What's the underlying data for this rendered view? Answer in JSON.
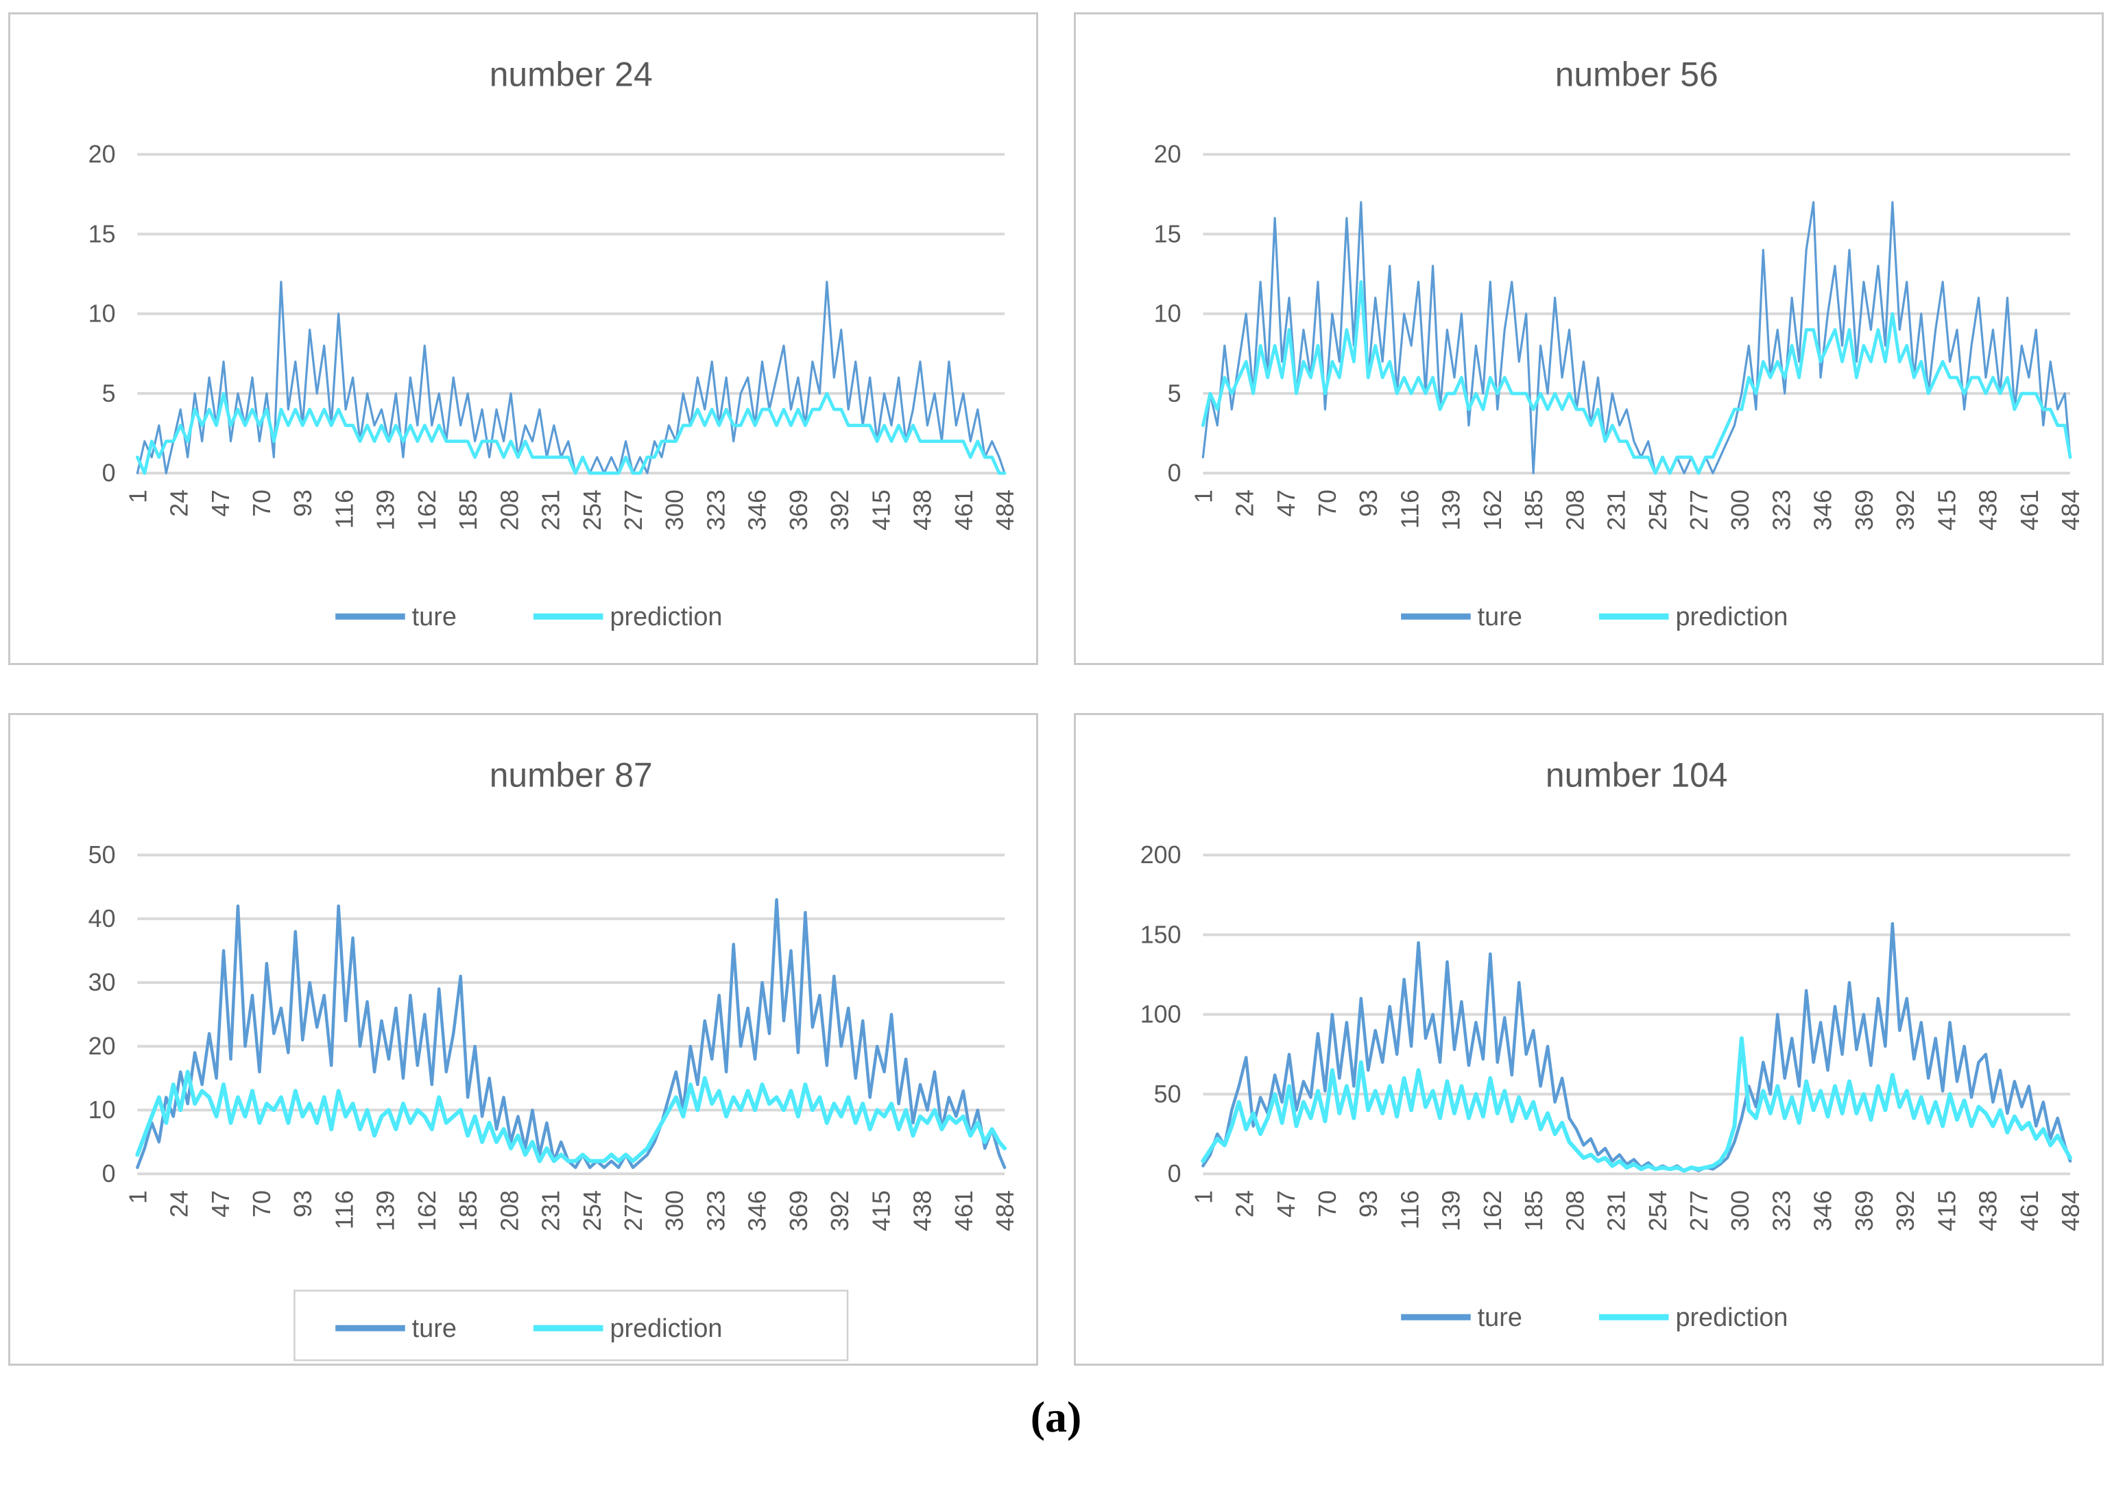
{
  "caption": {
    "label": "(a)"
  },
  "colors": {
    "ture": "#5B9BD5",
    "prediction": "#4FE9FC",
    "grid": "#D9D9D9",
    "axis_text": "#595959",
    "panel_border": "#C9C9C9",
    "legend_box_border": "#D0D0D0"
  },
  "chart_data": {
    "type": "line",
    "x_start": 1,
    "x_step": 4,
    "x_end": 484,
    "x_tick_labels": [
      "1",
      "24",
      "47",
      "70",
      "93",
      "116",
      "139",
      "162",
      "185",
      "208",
      "231",
      "254",
      "277",
      "300",
      "323",
      "346",
      "369",
      "392",
      "415",
      "438",
      "461",
      "484"
    ],
    "legend_labels": [
      "ture",
      "prediction"
    ],
    "legend_position": "bottom",
    "grid": true,
    "charts": [
      {
        "title": "number 24",
        "y_ticks": [
          0,
          5,
          10,
          15,
          20
        ],
        "y_max": 20,
        "legend_box": false,
        "series": [
          {
            "name": "ture",
            "values": [
              0,
              2,
              1,
              3,
              0,
              2,
              4,
              1,
              5,
              2,
              6,
              3,
              7,
              2,
              5,
              3,
              6,
              2,
              5,
              1,
              12,
              4,
              7,
              3,
              9,
              5,
              8,
              3,
              10,
              4,
              6,
              2,
              5,
              3,
              4,
              2,
              5,
              1,
              6,
              3,
              8,
              3,
              5,
              2,
              6,
              3,
              5,
              2,
              4,
              1,
              4,
              2,
              5,
              1,
              3,
              2,
              4,
              1,
              3,
              1,
              2,
              0,
              1,
              0,
              1,
              0,
              1,
              0,
              2,
              0,
              1,
              0,
              2,
              1,
              3,
              2,
              5,
              3,
              6,
              4,
              7,
              3,
              6,
              2,
              5,
              6,
              3,
              7,
              4,
              6,
              8,
              4,
              6,
              3,
              7,
              5,
              12,
              6,
              9,
              4,
              7,
              3,
              6,
              2,
              5,
              3,
              6,
              2,
              4,
              7,
              3,
              5,
              2,
              7,
              3,
              5,
              2,
              4,
              1,
              2,
              1,
              0
            ]
          },
          {
            "name": "prediction",
            "values": [
              1,
              0,
              2,
              1,
              2,
              2,
              3,
              2,
              4,
              3,
              4,
              3,
              5,
              3,
              4,
              3,
              4,
              3,
              4,
              2,
              4,
              3,
              4,
              3,
              4,
              3,
              4,
              3,
              4,
              3,
              3,
              2,
              3,
              2,
              3,
              2,
              3,
              2,
              3,
              2,
              3,
              2,
              3,
              2,
              2,
              2,
              2,
              1,
              2,
              2,
              2,
              1,
              2,
              1,
              2,
              1,
              1,
              1,
              1,
              1,
              1,
              0,
              1,
              0,
              0,
              0,
              0,
              0,
              1,
              0,
              0,
              1,
              1,
              2,
              2,
              2,
              3,
              3,
              4,
              3,
              4,
              3,
              4,
              3,
              3,
              4,
              3,
              4,
              4,
              3,
              4,
              3,
              4,
              3,
              4,
              4,
              5,
              4,
              4,
              3,
              3,
              3,
              3,
              2,
              3,
              2,
              3,
              2,
              3,
              2,
              2,
              2,
              2,
              2,
              2,
              2,
              1,
              2,
              1,
              1,
              0,
              0
            ]
          }
        ]
      },
      {
        "title": "number 56",
        "y_ticks": [
          0,
          5,
          10,
          15,
          20
        ],
        "y_max": 20,
        "legend_box": false,
        "series": [
          {
            "name": "ture",
            "values": [
              1,
              5,
              3,
              8,
              4,
              7,
              10,
              5,
              12,
              6,
              16,
              7,
              11,
              5,
              9,
              6,
              12,
              4,
              10,
              7,
              16,
              8,
              17,
              6,
              11,
              7,
              13,
              5,
              10,
              8,
              12,
              5,
              13,
              4,
              9,
              6,
              10,
              3,
              8,
              5,
              12,
              4,
              9,
              12,
              7,
              10,
              0,
              8,
              5,
              11,
              6,
              9,
              4,
              7,
              3,
              6,
              2,
              5,
              3,
              4,
              2,
              1,
              2,
              0,
              1,
              0,
              1,
              0,
              1,
              0,
              1,
              0,
              1,
              2,
              3,
              5,
              8,
              4,
              14,
              6,
              9,
              5,
              11,
              7,
              14,
              17,
              6,
              10,
              13,
              8,
              14,
              7,
              12,
              9,
              13,
              8,
              17,
              9,
              12,
              6,
              10,
              5,
              9,
              12,
              7,
              9,
              4,
              8,
              11,
              6,
              9,
              5,
              11,
              4,
              8,
              6,
              9,
              3,
              7,
              4,
              5,
              1
            ]
          },
          {
            "name": "prediction",
            "values": [
              3,
              5,
              4,
              6,
              5,
              6,
              7,
              5,
              8,
              6,
              8,
              6,
              9,
              5,
              7,
              6,
              8,
              5,
              7,
              6,
              9,
              7,
              12,
              6,
              8,
              6,
              7,
              5,
              6,
              5,
              6,
              5,
              6,
              4,
              5,
              5,
              6,
              4,
              5,
              4,
              6,
              5,
              6,
              5,
              5,
              5,
              4,
              5,
              4,
              5,
              4,
              5,
              4,
              4,
              3,
              4,
              2,
              3,
              2,
              2,
              1,
              1,
              1,
              0,
              1,
              0,
              1,
              1,
              1,
              0,
              1,
              1,
              2,
              3,
              4,
              4,
              6,
              5,
              7,
              6,
              7,
              6,
              8,
              6,
              9,
              9,
              7,
              8,
              9,
              7,
              9,
              6,
              8,
              7,
              9,
              7,
              10,
              7,
              8,
              6,
              7,
              5,
              6,
              7,
              6,
              6,
              5,
              6,
              6,
              5,
              6,
              5,
              6,
              4,
              5,
              5,
              5,
              4,
              4,
              3,
              3,
              1
            ]
          }
        ]
      },
      {
        "title": "number 87",
        "y_ticks": [
          0,
          10,
          20,
          30,
          40,
          50
        ],
        "y_max": 50,
        "legend_box": true,
        "series": [
          {
            "name": "ture",
            "values": [
              1,
              4,
              8,
              5,
              12,
              9,
              16,
              11,
              19,
              14,
              22,
              15,
              35,
              18,
              42,
              20,
              28,
              16,
              33,
              22,
              26,
              19,
              38,
              21,
              30,
              23,
              28,
              17,
              42,
              24,
              37,
              20,
              27,
              16,
              24,
              18,
              26,
              15,
              28,
              17,
              25,
              14,
              29,
              16,
              22,
              31,
              12,
              20,
              9,
              15,
              7,
              12,
              5,
              9,
              4,
              10,
              3,
              8,
              2,
              5,
              2,
              1,
              3,
              1,
              2,
              1,
              2,
              1,
              3,
              1,
              2,
              3,
              5,
              8,
              12,
              16,
              10,
              20,
              14,
              24,
              18,
              28,
              16,
              36,
              20,
              26,
              18,
              30,
              22,
              43,
              24,
              35,
              19,
              41,
              23,
              28,
              17,
              31,
              20,
              26,
              15,
              24,
              12,
              20,
              16,
              25,
              11,
              18,
              8,
              14,
              10,
              16,
              7,
              12,
              9,
              13,
              6,
              10,
              4,
              7,
              3,
              1
            ]
          },
          {
            "name": "prediction",
            "values": [
              3,
              6,
              9,
              12,
              8,
              14,
              10,
              16,
              11,
              13,
              12,
              9,
              14,
              8,
              12,
              9,
              13,
              8,
              11,
              10,
              12,
              8,
              13,
              9,
              11,
              8,
              12,
              7,
              13,
              9,
              11,
              7,
              10,
              6,
              9,
              10,
              7,
              11,
              8,
              10,
              9,
              7,
              12,
              8,
              9,
              10,
              6,
              9,
              5,
              8,
              5,
              7,
              4,
              6,
              3,
              5,
              2,
              4,
              2,
              3,
              2,
              2,
              3,
              2,
              2,
              2,
              3,
              2,
              3,
              2,
              3,
              4,
              6,
              8,
              10,
              12,
              9,
              14,
              10,
              15,
              11,
              13,
              9,
              12,
              10,
              13,
              10,
              14,
              11,
              12,
              10,
              13,
              9,
              14,
              10,
              12,
              8,
              11,
              9,
              12,
              8,
              11,
              7,
              10,
              9,
              11,
              7,
              10,
              6,
              9,
              8,
              10,
              7,
              9,
              8,
              9,
              6,
              8,
              5,
              7,
              5,
              4
            ]
          }
        ]
      },
      {
        "title": "number 104",
        "y_ticks": [
          0,
          50,
          100,
          150,
          200
        ],
        "y_max": 200,
        "legend_box": false,
        "series": [
          {
            "name": "ture",
            "values": [
              5,
              12,
              25,
              18,
              40,
              55,
              73,
              30,
              48,
              38,
              62,
              45,
              75,
              40,
              58,
              48,
              88,
              52,
              100,
              60,
              95,
              55,
              110,
              65,
              90,
              70,
              105,
              75,
              122,
              80,
              145,
              85,
              100,
              70,
              133,
              78,
              108,
              68,
              95,
              72,
              138,
              70,
              98,
              62,
              120,
              75,
              90,
              55,
              80,
              45,
              60,
              35,
              28,
              18,
              22,
              12,
              16,
              8,
              12,
              6,
              9,
              4,
              7,
              3,
              5,
              3,
              5,
              2,
              4,
              2,
              4,
              3,
              6,
              10,
              20,
              35,
              55,
              42,
              70,
              50,
              100,
              60,
              85,
              55,
              115,
              70,
              95,
              65,
              105,
              75,
              120,
              78,
              100,
              68,
              110,
              80,
              157,
              90,
              110,
              72,
              95,
              60,
              85,
              52,
              95,
              58,
              80,
              48,
              70,
              75,
              45,
              65,
              38,
              58,
              42,
              55,
              30,
              45,
              22,
              35,
              18,
              8
            ]
          },
          {
            "name": "prediction",
            "values": [
              8,
              15,
              22,
              18,
              30,
              45,
              28,
              38,
              25,
              35,
              50,
              32,
              55,
              30,
              45,
              35,
              52,
              33,
              65,
              38,
              55,
              35,
              70,
              40,
              52,
              38,
              55,
              36,
              60,
              40,
              65,
              42,
              52,
              35,
              58,
              38,
              55,
              35,
              50,
              36,
              60,
              38,
              52,
              33,
              48,
              35,
              45,
              28,
              38,
              25,
              32,
              20,
              15,
              10,
              12,
              8,
              10,
              5,
              8,
              4,
              6,
              3,
              5,
              3,
              4,
              3,
              4,
              2,
              4,
              3,
              4,
              5,
              8,
              15,
              30,
              85,
              40,
              35,
              52,
              38,
              55,
              35,
              48,
              32,
              58,
              40,
              52,
              36,
              55,
              38,
              58,
              38,
              50,
              34,
              55,
              40,
              62,
              42,
              52,
              35,
              48,
              32,
              45,
              30,
              50,
              34,
              46,
              30,
              42,
              38,
              30,
              40,
              26,
              36,
              28,
              32,
              22,
              28,
              18,
              24,
              16,
              10
            ]
          }
        ]
      }
    ]
  }
}
